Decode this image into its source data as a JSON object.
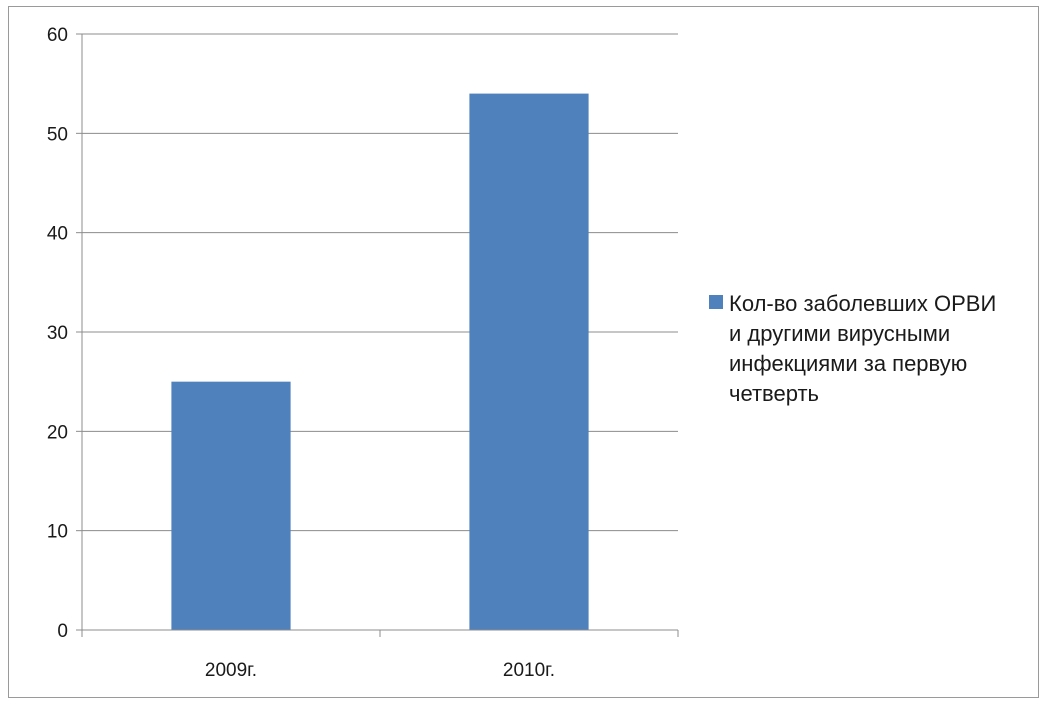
{
  "chart_data": {
    "type": "bar",
    "title": "",
    "xlabel": "",
    "ylabel": "",
    "categories": [
      "2009г.",
      "2010г."
    ],
    "series": [
      {
        "name": "Кол-во заболевших ОРВИ и другими вирусными инфекциями за первую четверть",
        "values": [
          25,
          54
        ]
      }
    ],
    "ylim": [
      0,
      60
    ],
    "yticks": [
      0,
      10,
      20,
      30,
      40,
      50,
      60
    ],
    "grid": true,
    "legend_position": "right",
    "bar_color": "#4f81bd"
  },
  "legend": {
    "lines": [
      "Кол-во заболевших ОРВИ",
      "и другими вирусными",
      "инфекциями за первую",
      "четверть"
    ]
  }
}
